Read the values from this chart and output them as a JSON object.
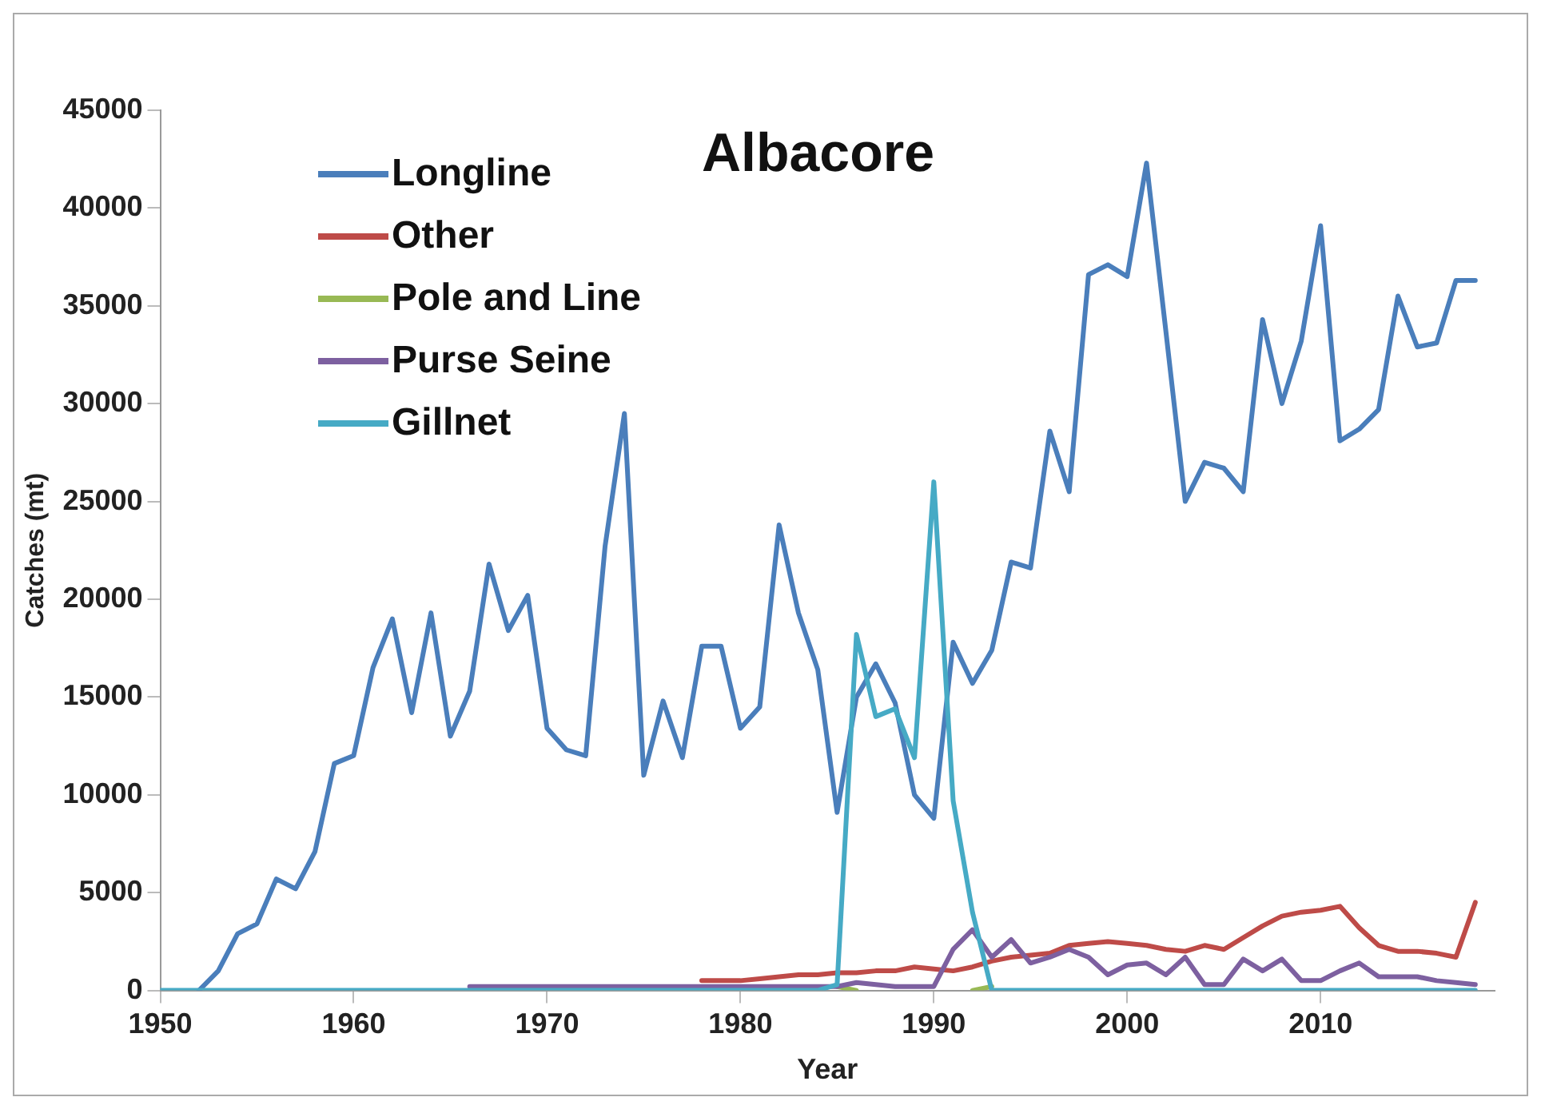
{
  "chart_data": {
    "type": "line",
    "title": "Albacore",
    "xlabel": "Year",
    "ylabel": "Catches (mt)",
    "x": [
      1950,
      1951,
      1952,
      1953,
      1954,
      1955,
      1956,
      1957,
      1958,
      1959,
      1960,
      1961,
      1962,
      1963,
      1964,
      1965,
      1966,
      1967,
      1968,
      1969,
      1970,
      1971,
      1972,
      1973,
      1974,
      1975,
      1976,
      1977,
      1978,
      1979,
      1980,
      1981,
      1982,
      1983,
      1984,
      1985,
      1986,
      1987,
      1988,
      1989,
      1990,
      1991,
      1992,
      1993,
      1994,
      1995,
      1996,
      1997,
      1998,
      1999,
      2000,
      2001,
      2002,
      2003,
      2004,
      2005,
      2006,
      2007,
      2008,
      2009,
      2010,
      2011,
      2012,
      2013,
      2014,
      2015,
      2016,
      2017,
      2018
    ],
    "series": [
      {
        "name": "Longline",
        "color": "#4a7ebb",
        "values": [
          null,
          null,
          0,
          1000,
          2900,
          3400,
          5700,
          5200,
          7100,
          11600,
          12000,
          16500,
          19000,
          14200,
          19300,
          13000,
          15300,
          21800,
          18400,
          20200,
          13400,
          12300,
          12000,
          22700,
          29500,
          11000,
          14800,
          11900,
          17600,
          17600,
          13400,
          14500,
          23800,
          19300,
          16400,
          9100,
          15000,
          16700,
          14700,
          10000,
          8800,
          17800,
          15700,
          17400,
          21900,
          21600,
          28600,
          25500,
          36600,
          37100,
          36500,
          42300,
          33700,
          25000,
          27000,
          26700,
          25500,
          34300,
          30000,
          33200,
          39100,
          28100,
          28700,
          29700,
          35500,
          32900,
          33100,
          36300,
          36300
        ]
      },
      {
        "name": "Other",
        "color": "#be4b48",
        "values": [
          null,
          null,
          null,
          null,
          null,
          null,
          null,
          null,
          null,
          null,
          null,
          null,
          null,
          null,
          null,
          null,
          null,
          null,
          null,
          null,
          null,
          null,
          null,
          null,
          null,
          null,
          null,
          null,
          500,
          500,
          500,
          600,
          700,
          800,
          800,
          900,
          900,
          1000,
          1000,
          1200,
          1100,
          1000,
          1200,
          1500,
          1700,
          1800,
          1900,
          2300,
          2400,
          2500,
          2400,
          2300,
          2100,
          2000,
          2300,
          2100,
          2700,
          3300,
          3800,
          4000,
          4100,
          4300,
          3200,
          2300,
          2000,
          2000,
          1900,
          1700,
          4500
        ]
      },
      {
        "name": "Pole and Line",
        "color": "#98b954",
        "values": [
          null,
          null,
          null,
          null,
          null,
          null,
          null,
          null,
          null,
          null,
          null,
          null,
          null,
          null,
          null,
          null,
          null,
          null,
          null,
          null,
          null,
          null,
          null,
          null,
          null,
          null,
          null,
          null,
          null,
          null,
          null,
          null,
          null,
          null,
          null,
          200,
          0,
          null,
          null,
          null,
          null,
          null,
          0,
          200,
          null,
          null,
          null,
          null,
          null,
          null,
          null,
          null,
          null,
          null,
          null,
          null,
          null,
          null,
          null,
          null,
          null,
          null,
          null,
          null,
          null,
          null,
          null,
          null,
          null
        ]
      },
      {
        "name": "Purse Seine",
        "color": "#7d60a0",
        "values": [
          null,
          null,
          null,
          null,
          null,
          null,
          null,
          null,
          null,
          null,
          null,
          null,
          null,
          null,
          null,
          null,
          200,
          200,
          200,
          200,
          200,
          200,
          200,
          200,
          200,
          200,
          200,
          200,
          200,
          200,
          200,
          200,
          200,
          200,
          200,
          200,
          400,
          300,
          200,
          200,
          200,
          2100,
          3100,
          1700,
          2600,
          1400,
          1700,
          2100,
          1700,
          800,
          1300,
          1400,
          800,
          1700,
          300,
          300,
          1600,
          1000,
          1600,
          500,
          500,
          1000,
          1400,
          700,
          700,
          700,
          500,
          400,
          300
        ]
      },
      {
        "name": "Gillnet",
        "color": "#46aac5",
        "values": [
          0,
          0,
          0,
          0,
          0,
          0,
          0,
          0,
          0,
          0,
          0,
          0,
          0,
          0,
          0,
          0,
          0,
          0,
          0,
          0,
          0,
          0,
          0,
          0,
          0,
          0,
          0,
          0,
          0,
          0,
          0,
          0,
          0,
          0,
          0,
          300,
          18200,
          14000,
          14400,
          11900,
          26000,
          9700,
          4000,
          0,
          0,
          0,
          0,
          0,
          0,
          0,
          0,
          0,
          0,
          0,
          0,
          0,
          0,
          0,
          0,
          0,
          0,
          0,
          0,
          0,
          0,
          0,
          0,
          0,
          0
        ]
      }
    ],
    "xlim": [
      1950,
      2019
    ],
    "xticks": [
      1950,
      1960,
      1970,
      1980,
      1990,
      2000,
      2010
    ],
    "ylim": [
      0,
      45000
    ],
    "yticks": [
      0,
      5000,
      10000,
      15000,
      20000,
      25000,
      30000,
      35000,
      40000,
      45000
    ],
    "grid": false,
    "legend": "top left",
    "marker": "none",
    "line_style": "solid"
  }
}
